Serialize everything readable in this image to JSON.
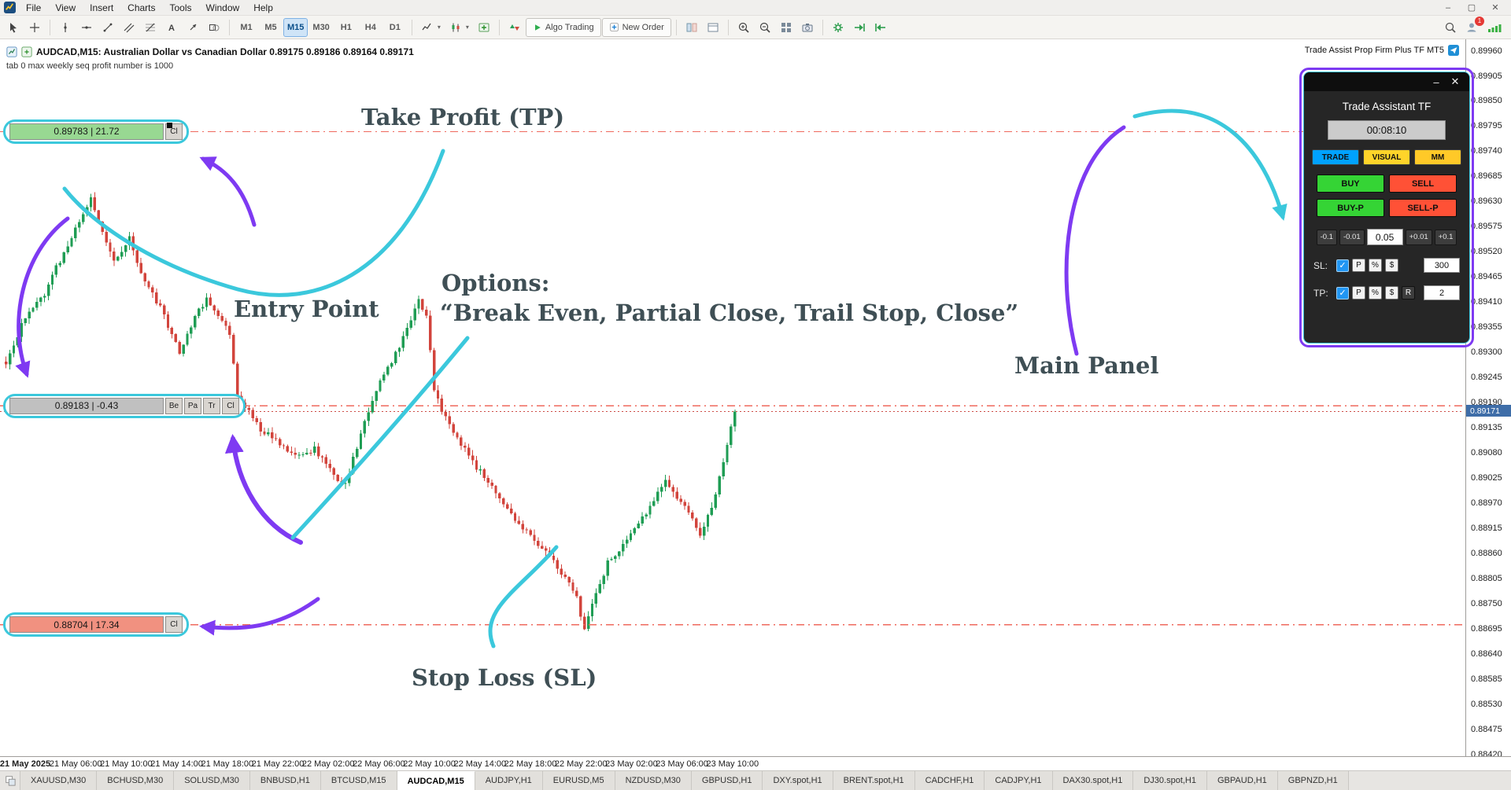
{
  "titlebar": {
    "menu_items": [
      "File",
      "View",
      "Insert",
      "Charts",
      "Tools",
      "Window",
      "Help"
    ],
    "window_controls": {
      "minimize": "–",
      "maximize": "▢",
      "close": "✕"
    }
  },
  "toolbar": {
    "icon_names": [
      "cursor",
      "crosshair",
      "vertical-line",
      "horizontal-line",
      "trendline",
      "equidistant-channel",
      "fibonacci",
      "text",
      "arrow",
      "shapes",
      "line-chart-type",
      "candlestick-chart-type",
      "indicators",
      "buy-sell-arrows",
      "depth-of-market",
      "chart-window",
      "zoom-in",
      "zoom-out",
      "tile-windows",
      "screenshot",
      "settings",
      "auto-scroll",
      "chart-shift",
      "search",
      "notifications",
      "connection-status"
    ],
    "timeframes": [
      "M1",
      "M5",
      "M15",
      "M30",
      "H1",
      "H4",
      "D1"
    ],
    "active_timeframe": "M15",
    "buttons": {
      "algo_trading": "Algo Trading",
      "new_order": "New Order"
    },
    "notification_count": "1",
    "dropdown_glyph": "▾"
  },
  "chart": {
    "header_title": "AUDCAD,M15:  Australian Dollar vs Canadian Dollar   0.89175 0.89186 0.89164 0.89171",
    "comment": "tab 0 max weekly seq profit number is 1000",
    "brand_label": "Trade Assist Prop Firm Plus TF MT5",
    "current_price": "0.89171"
  },
  "trade_labels": {
    "tp": {
      "text": "0.89783 | 21.72",
      "buttons": [
        "Cl"
      ],
      "price": 0.89783,
      "color": "#98d892"
    },
    "entry": {
      "text": "0.89183 | -0.43",
      "buttons": [
        "Be",
        "Pa",
        "Tr",
        "Cl"
      ],
      "price": 0.89183,
      "color": "#c0c0c0"
    },
    "sl": {
      "text": "0.88704 | 17.34",
      "buttons": [
        "Cl"
      ],
      "price": 0.88704,
      "color": "#f19180"
    }
  },
  "annotations": {
    "take_profit": "Take Profit (TP)",
    "entry_point": "Entry Point",
    "options_title": "Options:",
    "options_quote": "“Break Even, Partial Close, Trail Stop, Close”",
    "main_panel": "Main Panel",
    "stop_loss": "Stop Loss (SL)",
    "arrow_colors": {
      "purple": "#7e3af2",
      "cyan": "#3bc8dc"
    }
  },
  "panel": {
    "title": "Trade Assistant TF",
    "timer": "00:08:10",
    "window_buttons": {
      "minimize": "–",
      "close": "✕"
    },
    "tabs": [
      {
        "label": "TRADE",
        "color": "#00a2ff",
        "active": true
      },
      {
        "label": "VISUAL",
        "color": "#ffd42a",
        "active": false
      },
      {
        "label": "MM",
        "color": "#ffc928",
        "active": false
      }
    ],
    "order_buttons": [
      {
        "label": "BUY",
        "color": "#35d435"
      },
      {
        "label": "SELL",
        "color": "#ff5136"
      },
      {
        "label": "BUY-P",
        "color": "#35d435"
      },
      {
        "label": "SELL-P",
        "color": "#ff5136"
      }
    ],
    "lot": {
      "decrement": [
        "-0.1",
        "-0.01"
      ],
      "value": "0.05",
      "increment": [
        "+0.01",
        "+0.1"
      ]
    },
    "sl_row": {
      "label": "SL:",
      "checked": true,
      "modes": [
        "P",
        "%",
        "$"
      ],
      "active_mode": "P",
      "value": "300"
    },
    "tp_row": {
      "label": "TP:",
      "checked": true,
      "modes": [
        "P",
        "%",
        "$",
        "R"
      ],
      "active_mode": "R",
      "value": "2"
    }
  },
  "bottom_tabs": {
    "items": [
      "XAUUSD,M30",
      "BCHUSD,M30",
      "SOLUSD,M30",
      "BNBUSD,H1",
      "BTCUSD,M15",
      "AUDCAD,M15",
      "AUDJPY,H1",
      "EURUSD,M5",
      "NZDUSD,M30",
      "GBPUSD,H1",
      "DXY.spot,H1",
      "BRENT.spot,H1",
      "CADCHF,H1",
      "CADJPY,H1",
      "DAX30.spot,H1",
      "DJ30.spot,H1",
      "GBPAUD,H1",
      "GBPNZD,H1"
    ],
    "active": "AUDCAD,M15"
  },
  "chart_data": {
    "type": "candlestick",
    "title": "AUDCAD,M15 Australian Dollar vs Canadian Dollar",
    "open": "0.89175",
    "high": "0.89186",
    "low": "0.89164",
    "close": "0.89171",
    "y_axis": {
      "max": 0.8996,
      "min": 0.8842,
      "step": 0.00055
    },
    "x_labels": [
      "21 May 2025",
      "21 May 06:00",
      "21 May 10:00",
      "21 May 14:00",
      "21 May 18:00",
      "21 May 22:00",
      "22 May 02:00",
      "22 May 06:00",
      "22 May 10:00",
      "22 May 14:00",
      "22 May 18:00",
      "22 May 22:00",
      "23 May 02:00",
      "23 May 06:00",
      "23 May 10:00"
    ],
    "levels": {
      "take_profit": 0.89783,
      "entry": 0.89183,
      "stop_loss": 0.88704,
      "current": 0.89171
    },
    "candle_count": 190,
    "price_path": [
      [
        0,
        0.8928
      ],
      [
        5,
        0.8938
      ],
      [
        10,
        0.8943
      ],
      [
        15,
        0.8952
      ],
      [
        20,
        0.896
      ],
      [
        22,
        0.8964
      ],
      [
        25,
        0.8956
      ],
      [
        28,
        0.895
      ],
      [
        32,
        0.8955
      ],
      [
        36,
        0.8945
      ],
      [
        40,
        0.894
      ],
      [
        45,
        0.893
      ],
      [
        48,
        0.8936
      ],
      [
        52,
        0.8942
      ],
      [
        55,
        0.8938
      ],
      [
        58,
        0.8934
      ],
      [
        60,
        0.8921
      ],
      [
        63,
        0.8917
      ],
      [
        66,
        0.8913
      ],
      [
        70,
        0.8911
      ],
      [
        75,
        0.8907
      ],
      [
        80,
        0.8909
      ],
      [
        85,
        0.8903
      ],
      [
        88,
        0.8901
      ],
      [
        92,
        0.8912
      ],
      [
        96,
        0.8922
      ],
      [
        100,
        0.8928
      ],
      [
        104,
        0.8935
      ],
      [
        107,
        0.8941
      ],
      [
        109,
        0.8938
      ],
      [
        111,
        0.8922
      ],
      [
        113,
        0.8917
      ],
      [
        116,
        0.8913
      ],
      [
        120,
        0.8907
      ],
      [
        124,
        0.8903
      ],
      [
        128,
        0.8898
      ],
      [
        132,
        0.8893
      ],
      [
        136,
        0.889
      ],
      [
        140,
        0.8886
      ],
      [
        144,
        0.8882
      ],
      [
        148,
        0.8876
      ],
      [
        150,
        0.8869
      ],
      [
        152,
        0.8875
      ],
      [
        156,
        0.8884
      ],
      [
        160,
        0.8888
      ],
      [
        164,
        0.8892
      ],
      [
        168,
        0.8898
      ],
      [
        171,
        0.8902
      ],
      [
        174,
        0.8898
      ],
      [
        177,
        0.8895
      ],
      [
        180,
        0.889
      ],
      [
        183,
        0.8896
      ],
      [
        186,
        0.8906
      ],
      [
        189,
        0.89171
      ]
    ],
    "colors": {
      "up": "#1f9d54",
      "down": "#d2443c"
    }
  }
}
